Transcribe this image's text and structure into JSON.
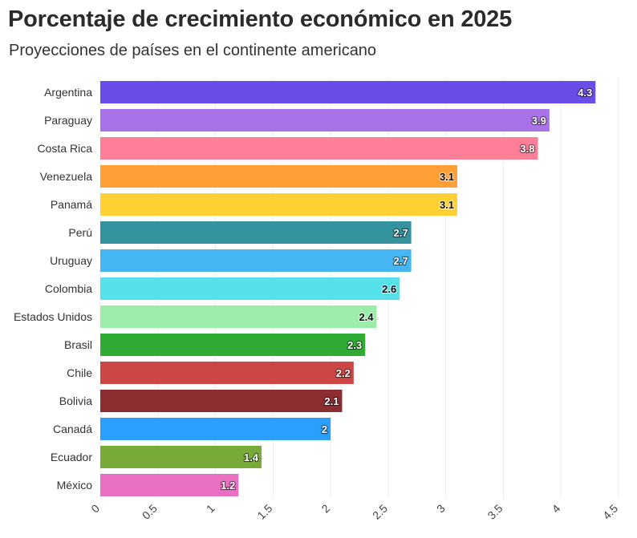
{
  "title": "Porcentaje de crecimiento económico en 2025",
  "subtitle": "Proyecciones de países en el continente americano",
  "chart_data": {
    "type": "bar",
    "orientation": "horizontal",
    "categories": [
      "Argentina",
      "Paraguay",
      "Costa Rica",
      "Venezuela",
      "Panamá",
      "Perú",
      "Uruguay",
      "Colombia",
      "Estados Unidos",
      "Brasil",
      "Chile",
      "Bolivia",
      "Canadá",
      "Ecuador",
      "México"
    ],
    "values": [
      4.3,
      3.9,
      3.8,
      3.1,
      3.1,
      2.7,
      2.7,
      2.6,
      2.4,
      2.3,
      2.2,
      2.1,
      2,
      1.4,
      1.2
    ],
    "value_labels": [
      "4.3",
      "3.9",
      "3.8",
      "3.1",
      "3.1",
      "2.7",
      "2.7",
      "2.6",
      "2.4",
      "2.3",
      "2.2",
      "2.1",
      "2",
      "1.4",
      "1.2"
    ],
    "colors": [
      "#6a4de8",
      "#a873e8",
      "#ff7f98",
      "#ff9f36",
      "#ffd132",
      "#34939f",
      "#45b6f2",
      "#55e1ea",
      "#9dedaa",
      "#30ab33",
      "#cc4646",
      "#8b2e32",
      "#2b9ffe",
      "#78aa3a",
      "#e96fc3"
    ],
    "label_colors": [
      "#ffffff",
      "#ffffff",
      "#ffffff",
      "#111111",
      "#111111",
      "#ffffff",
      "#ffffff",
      "#111111",
      "#111111",
      "#ffffff",
      "#ffffff",
      "#ffffff",
      "#ffffff",
      "#ffffff",
      "#ffffff"
    ],
    "x_ticks": [
      "0",
      "0.5",
      "1",
      "1.5",
      "2",
      "2.5",
      "3",
      "3.5",
      "4",
      "4.5"
    ],
    "xlim": [
      0,
      4.5
    ],
    "grid": true
  }
}
